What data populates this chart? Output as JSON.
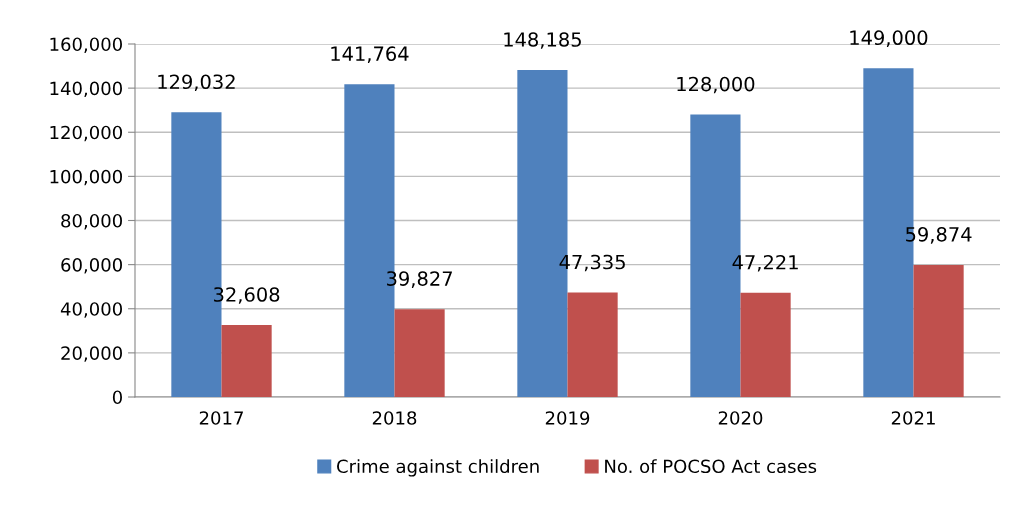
{
  "chart_data": {
    "type": "bar",
    "categories": [
      "2017",
      "2018",
      "2019",
      "2020",
      "2021"
    ],
    "series": [
      {
        "name": "Crime against children",
        "color": "#4f81bd",
        "values": [
          129032,
          141764,
          148185,
          128000,
          149000
        ],
        "value_labels": [
          "129,032",
          "141,764",
          "148,185",
          "128,000",
          "149,000"
        ]
      },
      {
        "name": "No. of POCSO Act cases",
        "color": "#c0504d",
        "values": [
          32608,
          39827,
          47335,
          47221,
          59874
        ],
        "value_labels": [
          "32,608",
          "39,827",
          "47,335",
          "47,221",
          "59,874"
        ]
      }
    ],
    "ylim": [
      0,
      160000
    ],
    "yticks": [
      {
        "value": 0,
        "label": "0"
      },
      {
        "value": 20000,
        "label": "20,000"
      },
      {
        "value": 40000,
        "label": "40,000"
      },
      {
        "value": 60000,
        "label": "60,000"
      },
      {
        "value": 80000,
        "label": "80,000"
      },
      {
        "value": 100000,
        "label": "100,000"
      },
      {
        "value": 120000,
        "label": "120,000"
      },
      {
        "value": 140000,
        "label": "140,000"
      },
      {
        "value": 160000,
        "label": "160,000"
      }
    ],
    "grid": "y",
    "legend": "bottom"
  }
}
